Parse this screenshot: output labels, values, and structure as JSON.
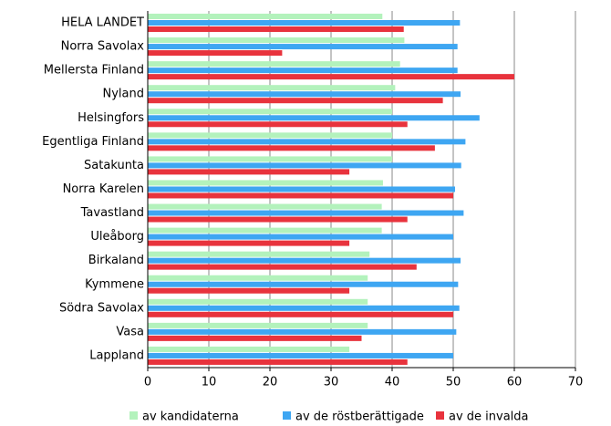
{
  "chart_data": {
    "type": "hbar",
    "categories": [
      "HELA LANDET",
      "Norra Savolax",
      "Mellersta Finland",
      "Nyland",
      "Helsingfors",
      "Egentliga Finland",
      "Satakunta",
      "Norra Karelen",
      "Tavastland",
      "Uleåborg",
      "Birkaland",
      "Kymmene",
      "Södra Savolax",
      "Vasa",
      "Lappland"
    ],
    "series": [
      {
        "name": "av kandidaterna",
        "color": "#b3f2bc",
        "values": [
          38.4,
          42,
          41.3,
          40.5,
          40,
          40,
          40,
          38.5,
          38.3,
          38.3,
          36.3,
          36,
          36,
          36,
          33
        ]
      },
      {
        "name": "av de röstberättigade",
        "color": "#3ea6f2",
        "values": [
          51.1,
          50.7,
          50.7,
          51.2,
          54.3,
          52,
          51.3,
          50.3,
          51.7,
          50,
          51.2,
          50.8,
          51,
          50.5,
          50
        ]
      },
      {
        "name": "av de invalda",
        "color": "#e8333d",
        "values": [
          41.9,
          22,
          60,
          48.3,
          42.5,
          47,
          33,
          50,
          42.5,
          33,
          44,
          33,
          50,
          35,
          42.5
        ]
      }
    ],
    "xlim": [
      0,
      70
    ],
    "xticks": [
      0,
      10,
      20,
      30,
      40,
      50,
      60,
      70
    ],
    "grid": true
  }
}
